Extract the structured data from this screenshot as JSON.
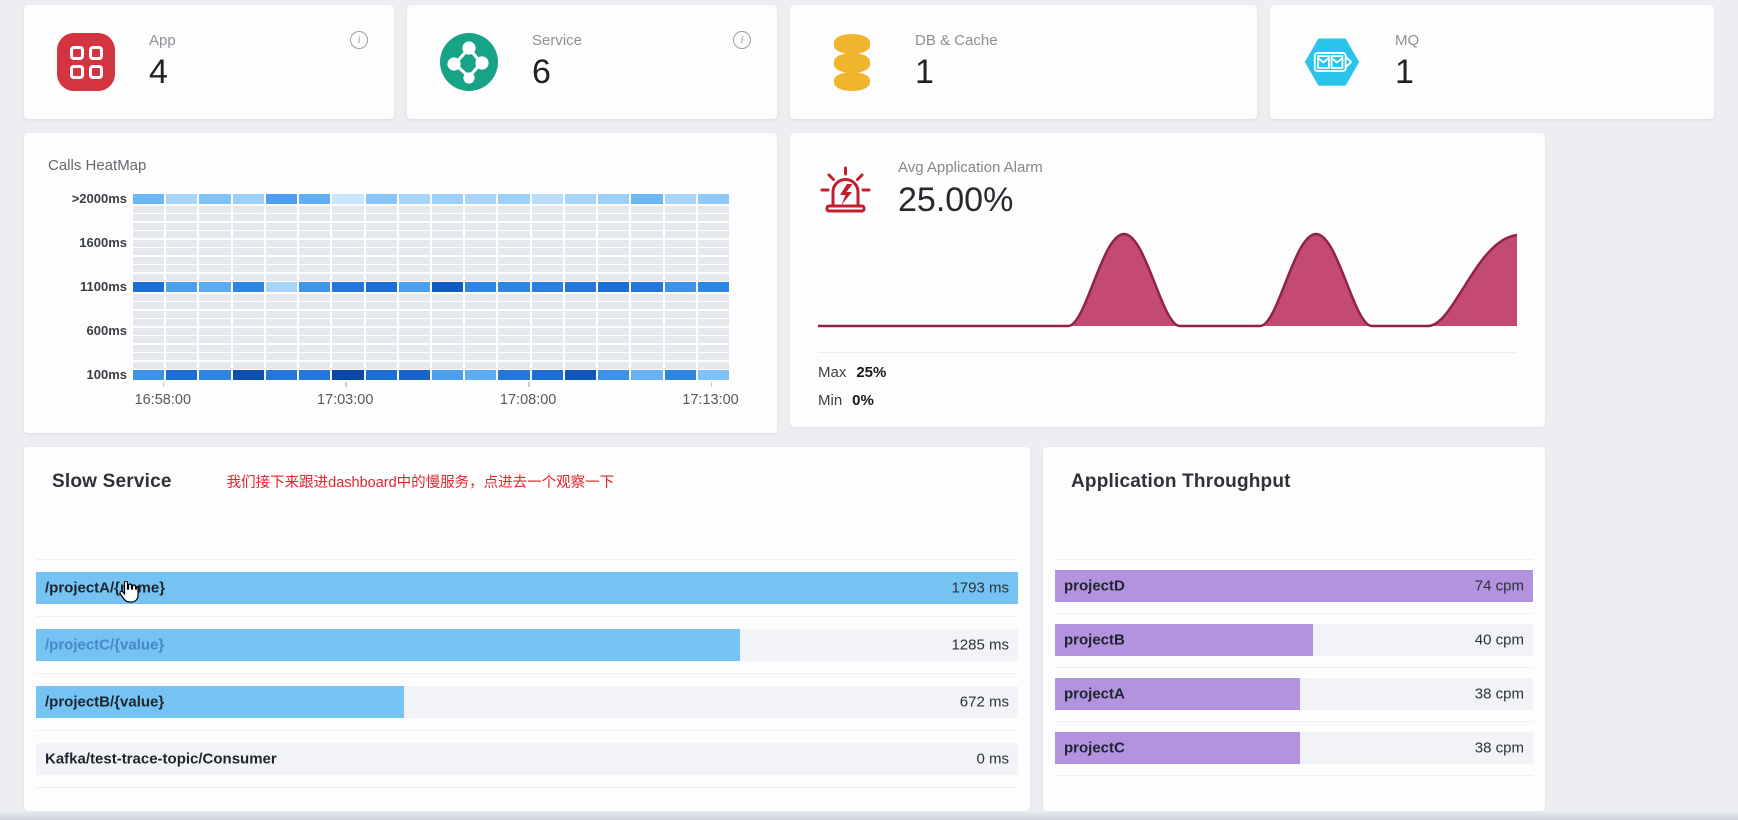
{
  "cards": [
    {
      "label": "App",
      "value": "4",
      "icon": "app-grid-icon",
      "accent": "#d23440",
      "info": "i"
    },
    {
      "label": "Service",
      "value": "6",
      "icon": "service-topology-icon",
      "accent": "#17a385",
      "info": "i"
    },
    {
      "label": "DB & Cache",
      "value": "1",
      "icon": "database-icon",
      "accent": "#f0b52d"
    },
    {
      "label": "MQ",
      "value": "1",
      "icon": "mq-hexagon-icon",
      "accent": "#2ac3ea"
    }
  ],
  "heatmap": {
    "title": "Calls HeatMap",
    "y_labels": [
      ">2000ms",
      "1600ms",
      "1100ms",
      "600ms",
      "100ms"
    ],
    "x_labels": [
      "16:58:00",
      "17:03:00",
      "17:08:00",
      "17:13:00"
    ],
    "x_label_positions_pct": [
      5,
      35.6,
      66.3,
      96.9
    ],
    "rows": 21,
    "cols": 18,
    "empty_color": "#e4e7eb",
    "data_rows": [
      {
        "row": 0,
        "label": ">2000ms",
        "colors": [
          "#6cb8f5",
          "#a6d4fa",
          "#7fc2f7",
          "#9ccffa",
          "#4d9ef0",
          "#5fadf3",
          "#c9e5fc",
          "#86c6f8",
          "#a6d4fa",
          "#9ccffa",
          "#a6d4fa",
          "#9ccffa",
          "#b8ddfb",
          "#a6d4fa",
          "#9ccffa",
          "#6cb8f5",
          "#a6d4fa",
          "#8fc9f9"
        ]
      },
      {
        "row": 10,
        "label": "1100ms",
        "colors": [
          "#1a6fd6",
          "#4aa0ef",
          "#5babf2",
          "#2d85e4",
          "#a6d4fa",
          "#3f97ec",
          "#2377dc",
          "#1a6fd6",
          "#4aa0ef",
          "#0f5dc4",
          "#2d85e4",
          "#2d85e4",
          "#2a80e1",
          "#2377dc",
          "#1a6fd6",
          "#2377dc",
          "#3a92ea",
          "#2d85e4"
        ]
      },
      {
        "row": 20,
        "label": "100ms",
        "colors": [
          "#3a92ea",
          "#1a6fd6",
          "#2d85e4",
          "#0d50b2",
          "#2377dc",
          "#2377dc",
          "#0a47a6",
          "#1a6fd6",
          "#1663cb",
          "#4aa0ef",
          "#5babf2",
          "#2377dc",
          "#1a6fd6",
          "#0f57bd",
          "#3a92ea",
          "#66b2f4",
          "#2d85e4",
          "#7fc2f7"
        ]
      }
    ]
  },
  "alarm": {
    "title": "Avg Application Alarm",
    "value": "25.00%",
    "max_label": "Max",
    "max_value": "25%",
    "min_label": "Min",
    "min_value": "0%",
    "line_color": "#8f2444",
    "fill_color": "#c34a72",
    "peak_percent": 25,
    "peak_count": 3
  },
  "slow_service": {
    "title": "Slow Service",
    "annotation": "我们接下来跟进dashboard中的慢服务，点进去一个观察一下",
    "bar_color": "#74c3f2",
    "unit": "ms",
    "items": [
      {
        "name": "/projectA/{name}",
        "value": 1793,
        "display": "1793 ms"
      },
      {
        "name": "/projectC/{value}",
        "value": 1285,
        "display": "1285 ms",
        "hovered": true
      },
      {
        "name": "/projectB/{value}",
        "value": 672,
        "display": "672 ms"
      },
      {
        "name": "Kafka/test-trace-topic/Consumer",
        "value": 0,
        "display": "0 ms"
      }
    ]
  },
  "throughput": {
    "title": "Application Throughput",
    "bar_color": "#b392de",
    "unit": "cpm",
    "items": [
      {
        "name": "projectD",
        "value": 74,
        "display": "74 cpm"
      },
      {
        "name": "projectB",
        "value": 40,
        "display": "40 cpm"
      },
      {
        "name": "projectA",
        "value": 38,
        "display": "38 cpm"
      },
      {
        "name": "projectC",
        "value": 38,
        "display": "38 cpm"
      }
    ]
  }
}
